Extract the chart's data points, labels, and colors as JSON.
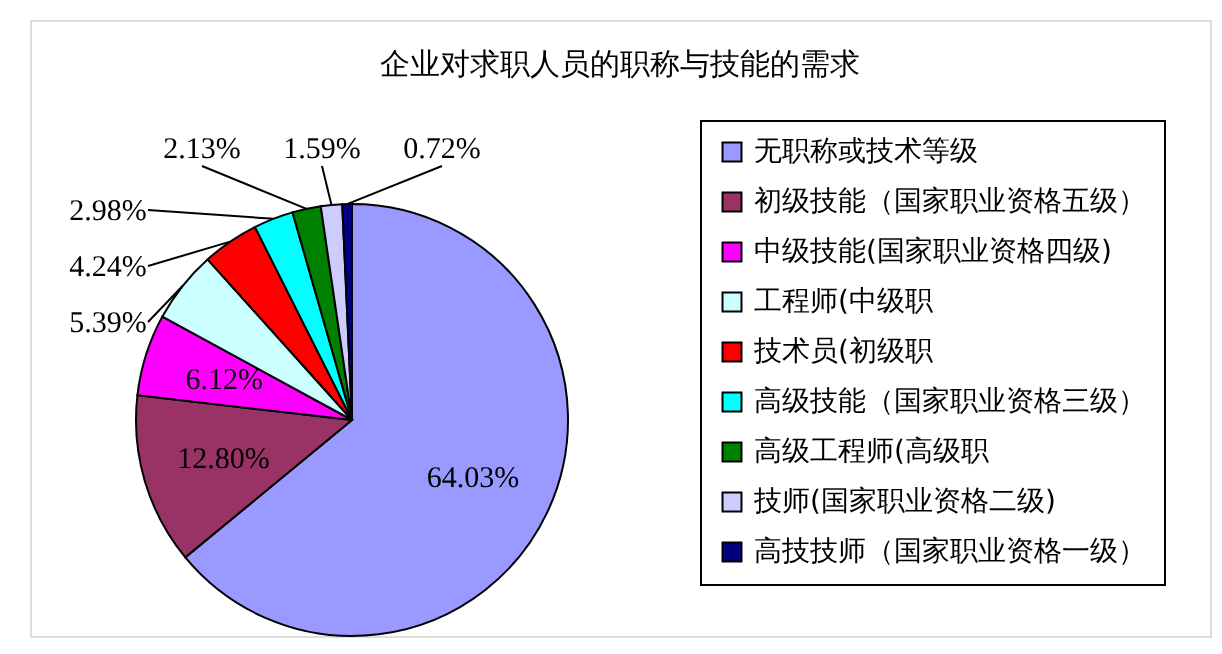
{
  "chart_data": {
    "type": "pie",
    "title": "企业对求职人员的职称与技能的需求",
    "categories": [
      "无职称或技术等级",
      "初级技能（国家职业资格五级）",
      "中级技能(国家职业资格四级)",
      "工程师(中级职",
      "技术员(初级职",
      "高级技能（国家职业资格三级）",
      "高级工程师(高级职",
      "技师(国家职业资格二级)",
      "高技技师（国家职业资格一级）"
    ],
    "values": [
      64.03,
      12.8,
      6.12,
      5.39,
      4.24,
      2.98,
      2.13,
      1.59,
      0.72
    ],
    "value_labels": [
      "64.03%",
      "12.80%",
      "6.12%",
      "5.39%",
      "4.24%",
      "2.98%",
      "2.13%",
      "1.59%",
      "0.72%"
    ],
    "colors": [
      "#9999ff",
      "#993366",
      "#ff00ff",
      "#ccffff",
      "#ff0000",
      "#00ffff",
      "#008000",
      "#ccccff",
      "#000080"
    ],
    "legend": "right"
  }
}
